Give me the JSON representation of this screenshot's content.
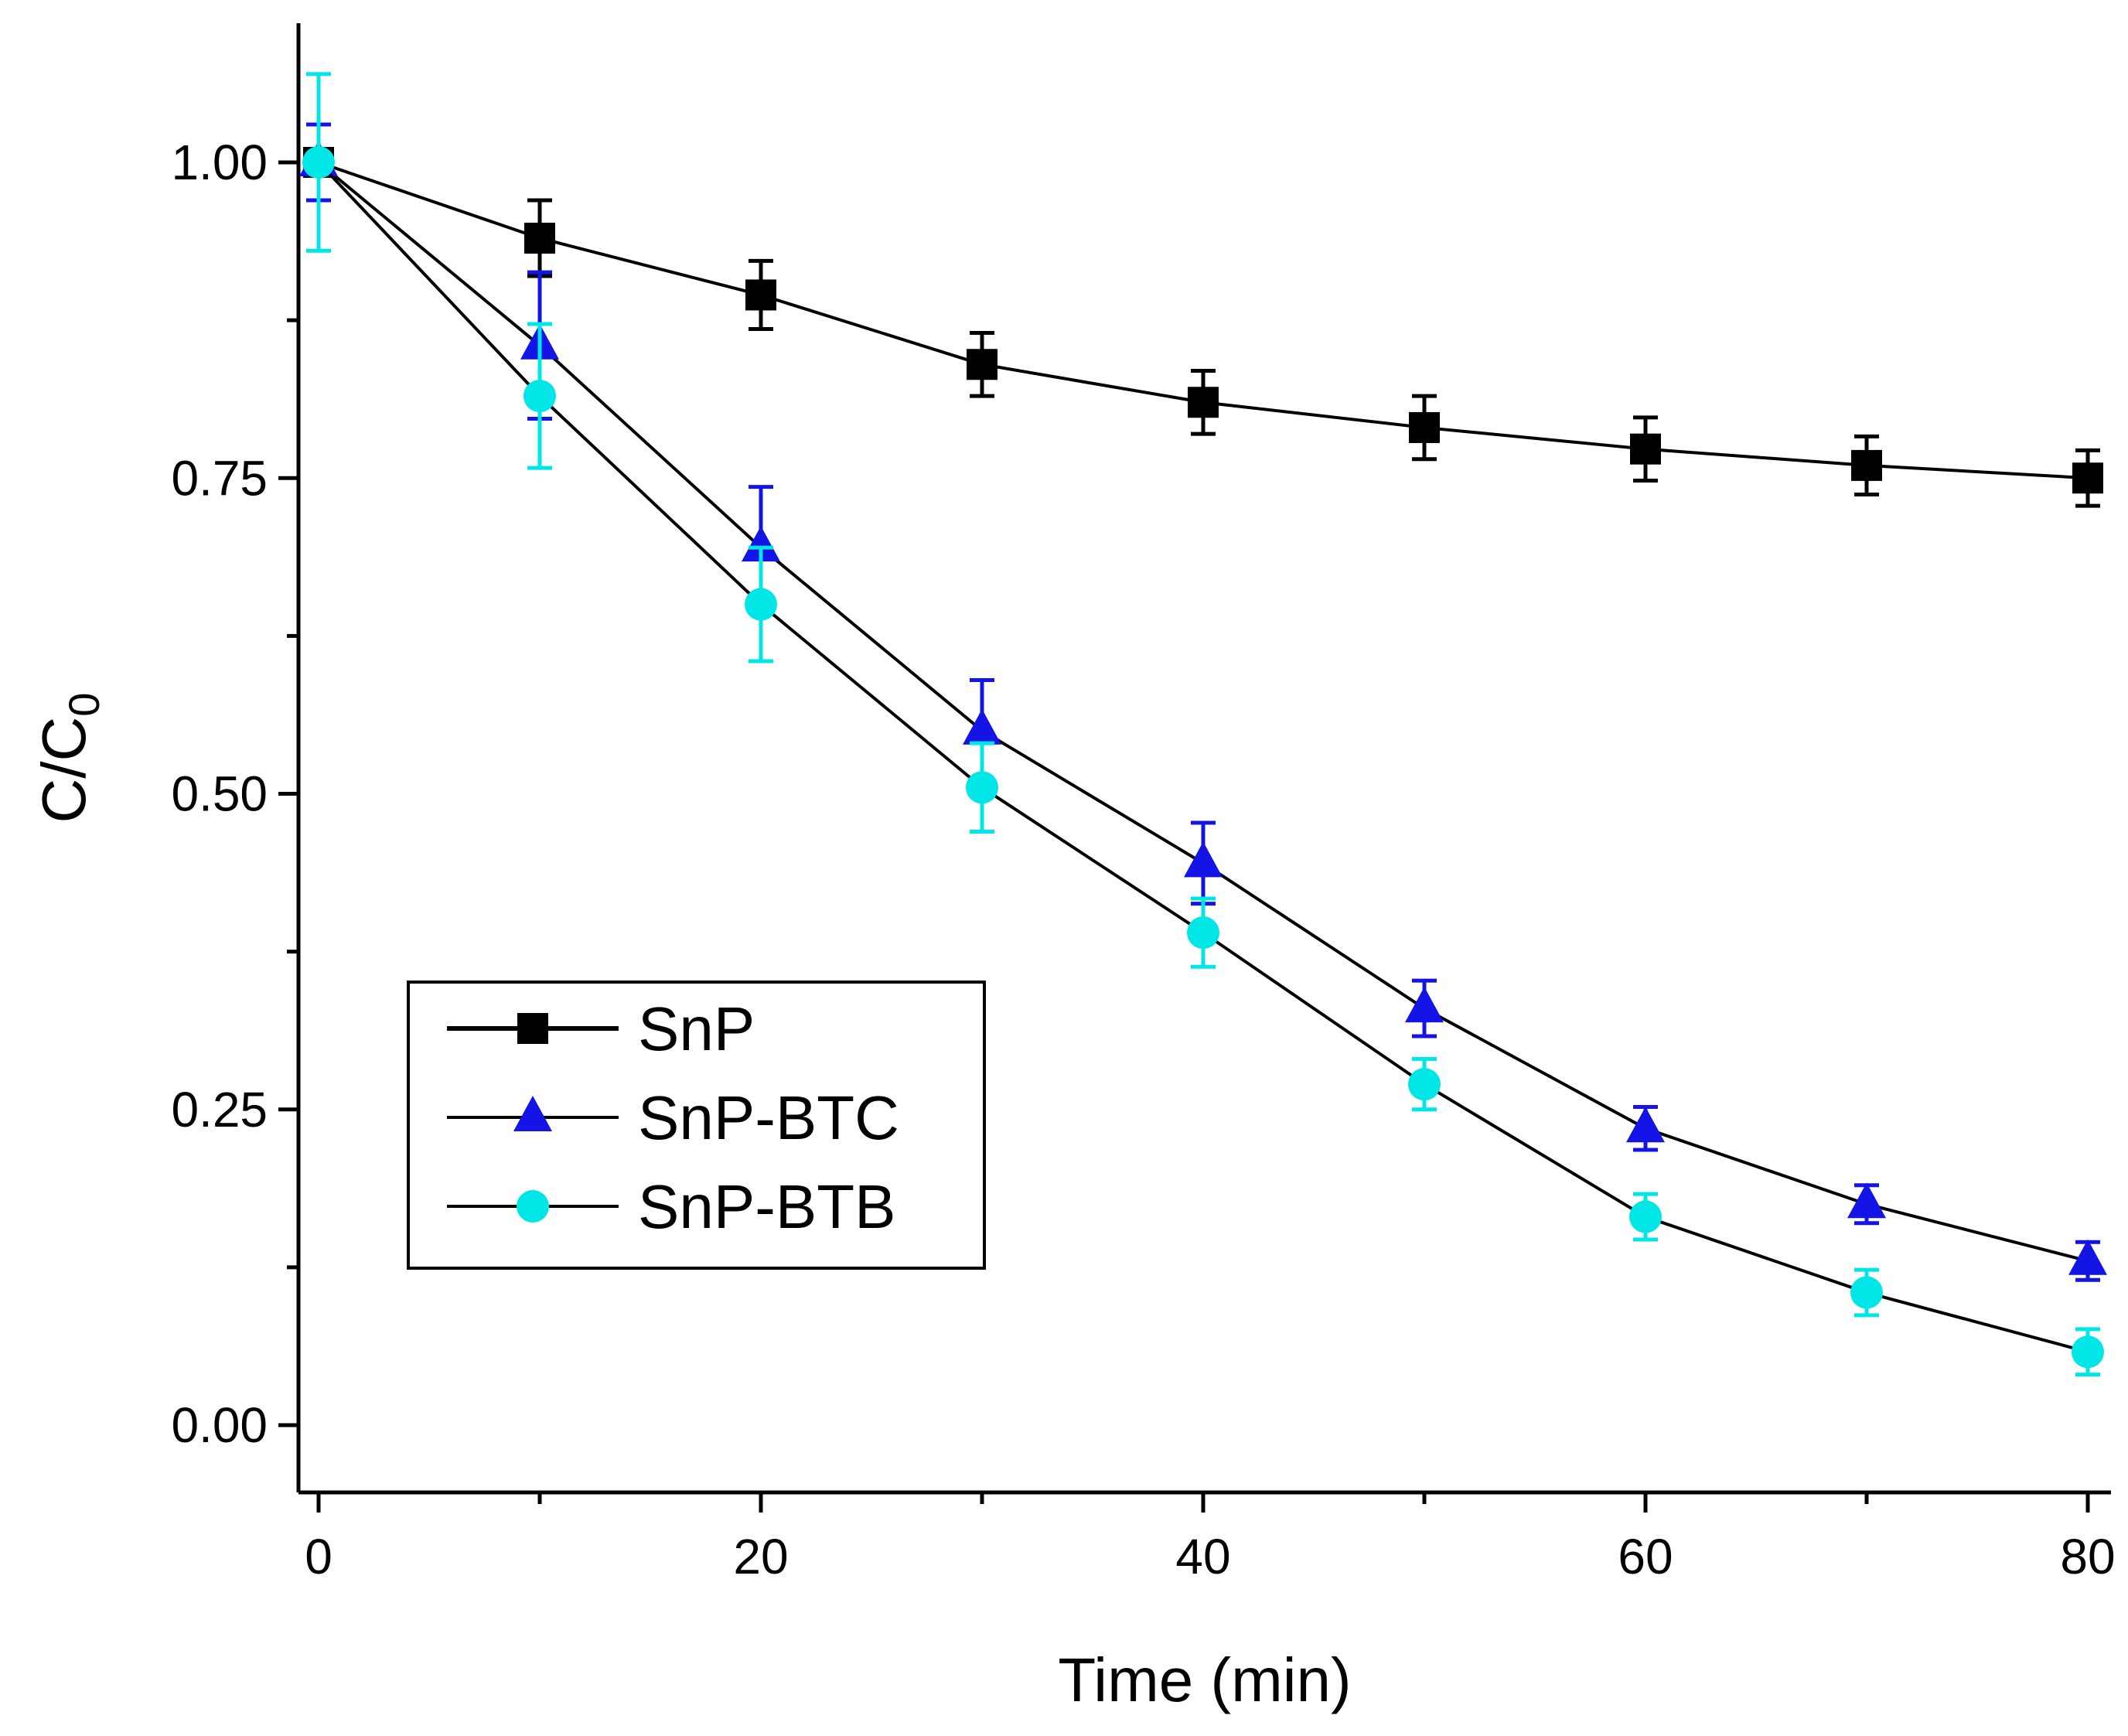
{
  "chart_data": {
    "type": "line",
    "title": "",
    "xlabel": "Time (min)",
    "ylabel_main": "C/C",
    "ylabel_sub": "0",
    "xlim": [
      -1,
      81
    ],
    "ylim": [
      -0.05,
      1.1
    ],
    "x_ticks": [
      0,
      20,
      40,
      60,
      80
    ],
    "x_tick_labels": [
      "0",
      "20",
      "40",
      "60",
      "80"
    ],
    "x_minor_ticks": [
      10,
      30,
      50,
      70
    ],
    "y_ticks": [
      0,
      0.25,
      0.5,
      0.75,
      1.0
    ],
    "y_tick_labels": [
      "0.00",
      "0.25",
      "0.50",
      "0.75",
      "1.00"
    ],
    "y_minor_ticks": [
      0.125,
      0.375,
      0.625,
      0.875
    ],
    "grid": false,
    "legend_position": "lower-left",
    "x": [
      0,
      10,
      20,
      30,
      40,
      50,
      60,
      70,
      80
    ],
    "series": [
      {
        "name": "SnP",
        "marker": "square",
        "color": "#000000",
        "line_color": "#000000",
        "values": [
          1.0,
          0.94,
          0.895,
          0.84,
          0.81,
          0.79,
          0.773,
          0.76,
          0.75
        ],
        "errors": [
          0.03,
          0.03,
          0.027,
          0.025,
          0.025,
          0.025,
          0.025,
          0.023,
          0.022
        ]
      },
      {
        "name": "SnP-BTC",
        "marker": "triangle",
        "color": "#1414e6",
        "line_color": "#000000",
        "values": [
          1.0,
          0.855,
          0.695,
          0.55,
          0.445,
          0.33,
          0.235,
          0.175,
          0.13
        ],
        "errors": [
          0.03,
          0.058,
          0.048,
          0.04,
          0.032,
          0.022,
          0.017,
          0.015,
          0.015
        ]
      },
      {
        "name": "SnP-BTB",
        "marker": "circle",
        "color": "#00e6e6",
        "line_color": "#000000",
        "values": [
          1.0,
          0.815,
          0.65,
          0.505,
          0.39,
          0.27,
          0.165,
          0.105,
          0.058
        ],
        "errors": [
          0.07,
          0.057,
          0.045,
          0.035,
          0.027,
          0.02,
          0.018,
          0.018,
          0.018
        ]
      }
    ]
  }
}
